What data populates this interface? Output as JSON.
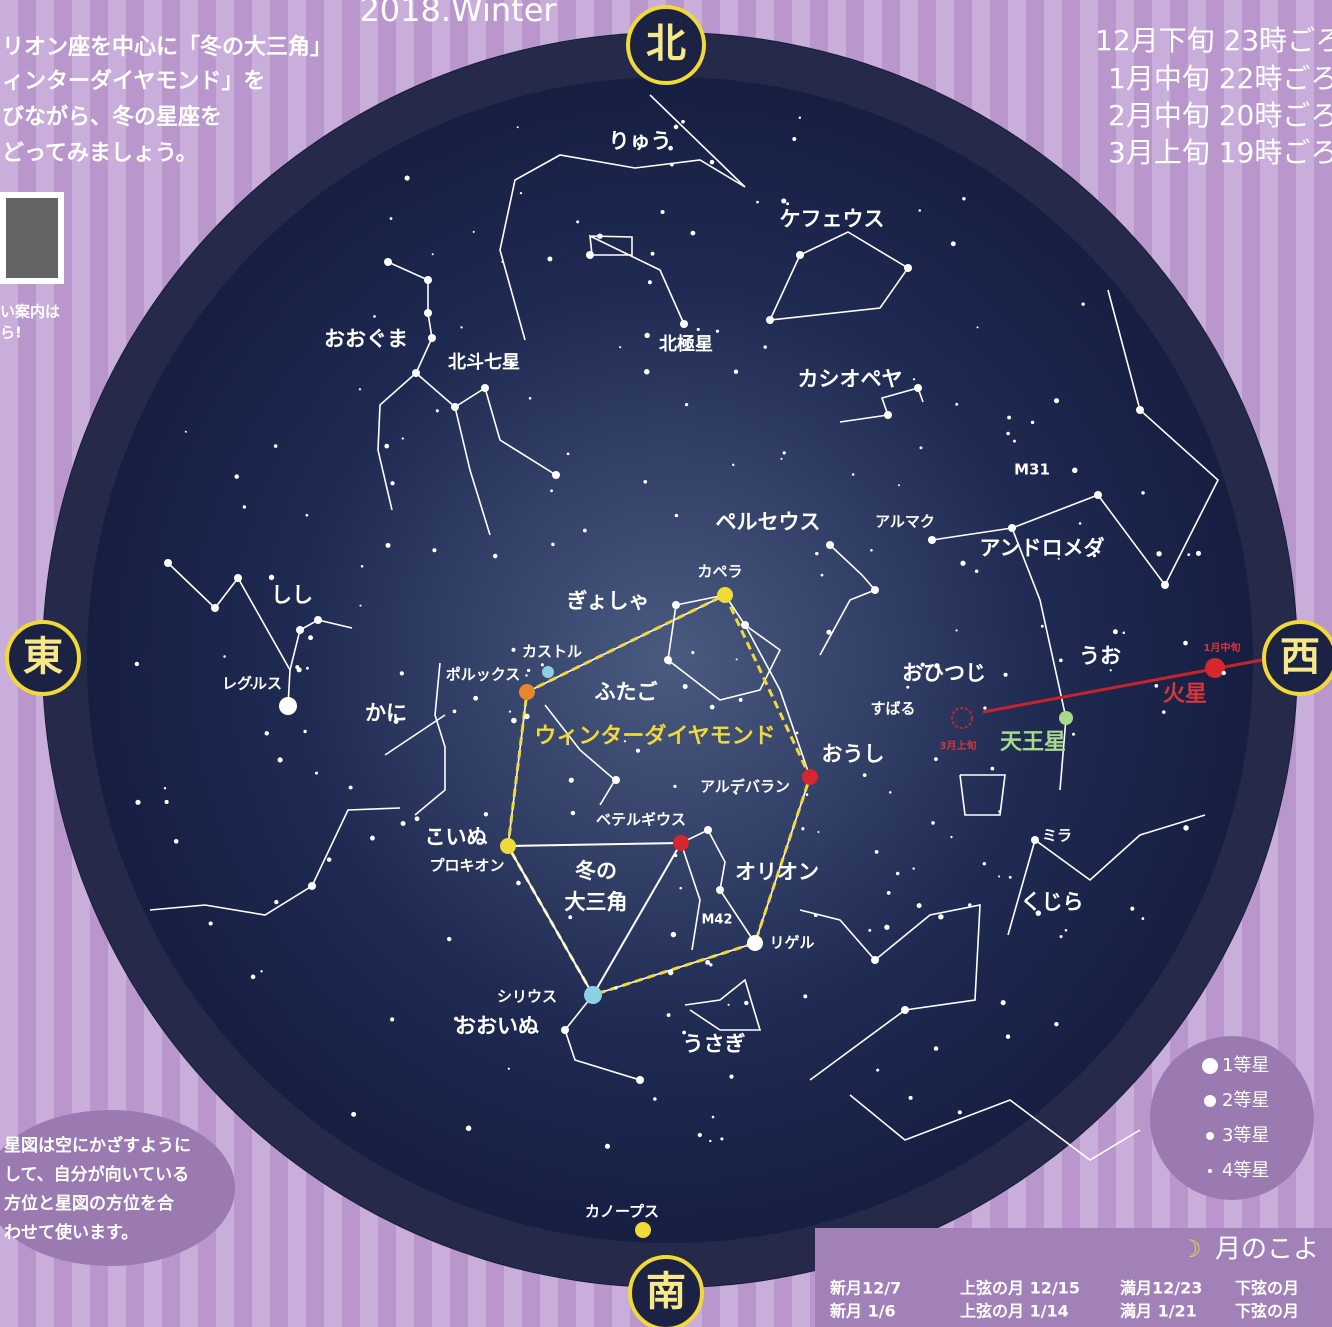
{
  "header": {
    "subtitle": "2018.Winter",
    "intro": [
      "リオン座を中心に「冬の大三角」",
      "ィンターダイヤモンド」を",
      "びながら、冬の星座を",
      "どってみましょう。"
    ],
    "qr_note": [
      "い案内は",
      "ら!"
    ],
    "times": [
      "12月下旬 23時ごろ",
      "1月中旬 22時ごろ",
      "2月中旬 20時ごろ",
      "3月上旬 19時ごろ"
    ]
  },
  "directions": {
    "north": "北",
    "east": "東",
    "west": "西",
    "south": "南"
  },
  "labels": [
    "りゅう",
    "ケフェウス",
    "おおぐま",
    "北斗七星",
    "北極星",
    "カシオペヤ",
    "M31",
    "ペルセウス",
    "アルマク",
    "アンドロメダ",
    "カペラ",
    "ぎょしゃ",
    "しし",
    "カストル",
    "ポルックス",
    "ふたご",
    "レグルス",
    "かに",
    "ウィンターダイヤモンド",
    "おひつじ",
    "すばる",
    "うお",
    "1月中旬",
    "火星",
    "3月上旬",
    "天王星",
    "おうし",
    "アルデバラン",
    "ベテルギウス",
    "こいぬ",
    "プロキオン",
    "冬の",
    "大三角",
    "オリオン",
    "M42",
    "リゲル",
    "ミラ",
    "くじら",
    "シリウス",
    "おおいぬ",
    "うさぎ",
    "カノープス"
  ],
  "legend": [
    "1等星",
    "2等星",
    "3等星",
    "4等星"
  ],
  "note": [
    "星図は空にかざすように",
    "して、自分が向いている",
    "方位と星図の方位を合",
    "わせて使います。"
  ],
  "moon": {
    "title": "月のこよ",
    "rows": [
      [
        "新月12/7",
        "上弦の月 12/15",
        "満月12/23",
        "下弦の月"
      ],
      [
        "新月 1/6",
        "上弦の月 1/14",
        "満月 1/21",
        "下弦の月"
      ]
    ]
  }
}
